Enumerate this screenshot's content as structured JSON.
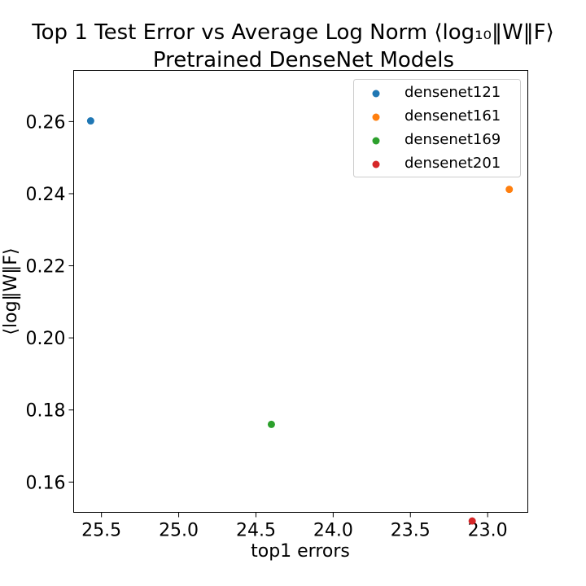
{
  "chart_data": {
    "type": "scatter",
    "title": "Top 1 Test Error vs  Average Log Norm ⟨log₁₀‖W‖F⟩",
    "subtitle": "Pretrained DenseNet Models",
    "xlabel": "top1 errors",
    "ylabel": "⟨log‖W‖F⟩",
    "xlim": [
      25.68,
      22.74
    ],
    "ylim": [
      0.1516,
      0.2742
    ],
    "x_inverted": true,
    "x_ticks": [
      25.5,
      25.0,
      24.5,
      24.0,
      23.5,
      23.0
    ],
    "x_tick_labels": [
      "25.5",
      "25.0",
      "24.5",
      "24.0",
      "23.5",
      "23.0"
    ],
    "y_ticks": [
      0.16,
      0.18,
      0.2,
      0.22,
      0.24,
      0.26
    ],
    "y_tick_labels": [
      "0.16",
      "0.18",
      "0.20",
      "0.22",
      "0.24",
      "0.26"
    ],
    "grid": false,
    "legend_position": "top-right",
    "series": [
      {
        "name": "densenet121",
        "color": "#1f77b4",
        "x": 25.57,
        "y": 0.2602
      },
      {
        "name": "densenet161",
        "color": "#ff7f0e",
        "x": 22.86,
        "y": 0.2412
      },
      {
        "name": "densenet169",
        "color": "#2ca02c",
        "x": 24.4,
        "y": 0.176
      },
      {
        "name": "densenet201",
        "color": "#d62728",
        "x": 23.1,
        "y": 0.1492
      }
    ]
  }
}
